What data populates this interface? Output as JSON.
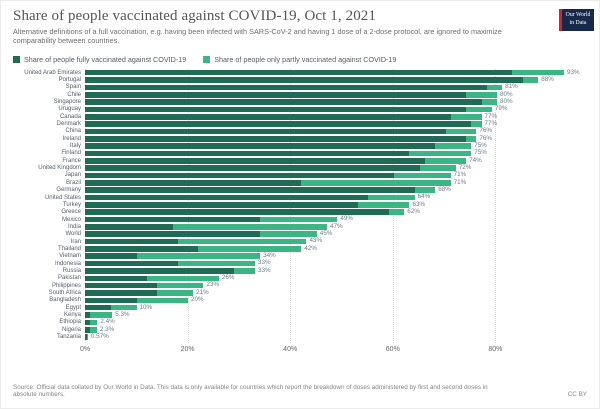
{
  "header": {
    "title": "Share of people vaccinated against COVID-19, Oct 1, 2021",
    "subtitle": "Alternative definitions of a full vaccination, e.g. having been infected with SARS-CoV-2 and having 1 dose of a 2-dose protocol, are ignored to maximize comparability between countries.",
    "logo_line1": "Our World",
    "logo_line2": "in Data",
    "logo_colors": {
      "background": "#16294b",
      "accent": "#cf2438"
    }
  },
  "legend": [
    {
      "label": "Share of people fully vaccinated against COVID-19",
      "color": "#1f6b54"
    },
    {
      "label": "Share of people only partly vaccinated against COVID-19",
      "color": "#3bb583"
    }
  ],
  "chart_data": {
    "type": "bar",
    "orientation": "horizontal",
    "stacked": true,
    "grid": "dotted-vertical",
    "xlim": [
      0,
      100
    ],
    "x_ticks": [
      "0%",
      "20%",
      "40%",
      "60%",
      "80%"
    ],
    "x_tick_values": [
      0,
      20,
      40,
      60,
      80
    ],
    "colors": {
      "fully": "#1f6b54",
      "partly": "#3bb583"
    },
    "series_names": [
      "Share of people fully vaccinated against COVID-19",
      "Share of people only partly vaccinated against COVID-19"
    ],
    "rows": [
      {
        "country": "United Arab Emirates",
        "fully": 83,
        "partly": 10,
        "label": "93%"
      },
      {
        "country": "Portugal",
        "fully": 85,
        "partly": 3,
        "label": "88%"
      },
      {
        "country": "Spain",
        "fully": 78,
        "partly": 3,
        "label": "81%"
      },
      {
        "country": "Chile",
        "fully": 74,
        "partly": 6,
        "label": "80%"
      },
      {
        "country": "Singapore",
        "fully": 77,
        "partly": 3,
        "label": "80%"
      },
      {
        "country": "Uruguay",
        "fully": 74,
        "partly": 5,
        "label": "79%"
      },
      {
        "country": "Canada",
        "fully": 71,
        "partly": 6,
        "label": "77%"
      },
      {
        "country": "Denmark",
        "fully": 75,
        "partly": 2,
        "label": "77%"
      },
      {
        "country": "China",
        "fully": 70,
        "partly": 6,
        "label": "76%"
      },
      {
        "country": "Ireland",
        "fully": 74,
        "partly": 2,
        "label": "76%"
      },
      {
        "country": "Italy",
        "fully": 68,
        "partly": 7,
        "label": "75%"
      },
      {
        "country": "Finland",
        "fully": 63,
        "partly": 12,
        "label": "75%"
      },
      {
        "country": "France",
        "fully": 66,
        "partly": 8,
        "label": "74%"
      },
      {
        "country": "United Kingdom",
        "fully": 65,
        "partly": 7,
        "label": "72%"
      },
      {
        "country": "Japan",
        "fully": 60,
        "partly": 11,
        "label": "71%"
      },
      {
        "country": "Brazil",
        "fully": 42,
        "partly": 29,
        "label": "71%"
      },
      {
        "country": "Germany",
        "fully": 64,
        "partly": 4,
        "label": "68%"
      },
      {
        "country": "United States",
        "fully": 55,
        "partly": 9,
        "label": "64%"
      },
      {
        "country": "Turkey",
        "fully": 53,
        "partly": 10,
        "label": "63%"
      },
      {
        "country": "Greece",
        "fully": 59,
        "partly": 3,
        "label": "62%"
      },
      {
        "country": "Mexico",
        "fully": 34,
        "partly": 15,
        "label": "49%"
      },
      {
        "country": "India",
        "fully": 17,
        "partly": 30,
        "label": "47%"
      },
      {
        "country": "World",
        "fully": 34,
        "partly": 11,
        "label": "45%"
      },
      {
        "country": "Iran",
        "fully": 18,
        "partly": 25,
        "label": "43%"
      },
      {
        "country": "Thailand",
        "fully": 22,
        "partly": 20,
        "label": "42%"
      },
      {
        "country": "Vietnam",
        "fully": 10,
        "partly": 24,
        "label": "34%"
      },
      {
        "country": "Indonesia",
        "fully": 18,
        "partly": 15,
        "label": "33%"
      },
      {
        "country": "Russia",
        "fully": 29,
        "partly": 4,
        "label": "33%"
      },
      {
        "country": "Pakistan",
        "fully": 12,
        "partly": 14,
        "label": "26%"
      },
      {
        "country": "Philippines",
        "fully": 14,
        "partly": 9,
        "label": "23%"
      },
      {
        "country": "South Africa",
        "fully": 14,
        "partly": 7,
        "label": "21%"
      },
      {
        "country": "Bangladesh",
        "fully": 10,
        "partly": 10,
        "label": "20%"
      },
      {
        "country": "Egypt",
        "fully": 5,
        "partly": 5,
        "label": "10%"
      },
      {
        "country": "Kenya",
        "fully": 1,
        "partly": 4.3,
        "label": "5.3%"
      },
      {
        "country": "Ethiopia",
        "fully": 1,
        "partly": 1.4,
        "label": "2.4%"
      },
      {
        "country": "Nigeria",
        "fully": 1,
        "partly": 1.3,
        "label": "2.3%"
      },
      {
        "country": "Tanzania",
        "fully": 0.35,
        "partly": 0.22,
        "label": "0.57%"
      }
    ]
  },
  "footer": {
    "source": "Source: Official data collated by Our World in Data. This data is only available for countries which report the breakdown of doses administered by first and second doses in absolute numbers.",
    "license": "CC BY"
  }
}
